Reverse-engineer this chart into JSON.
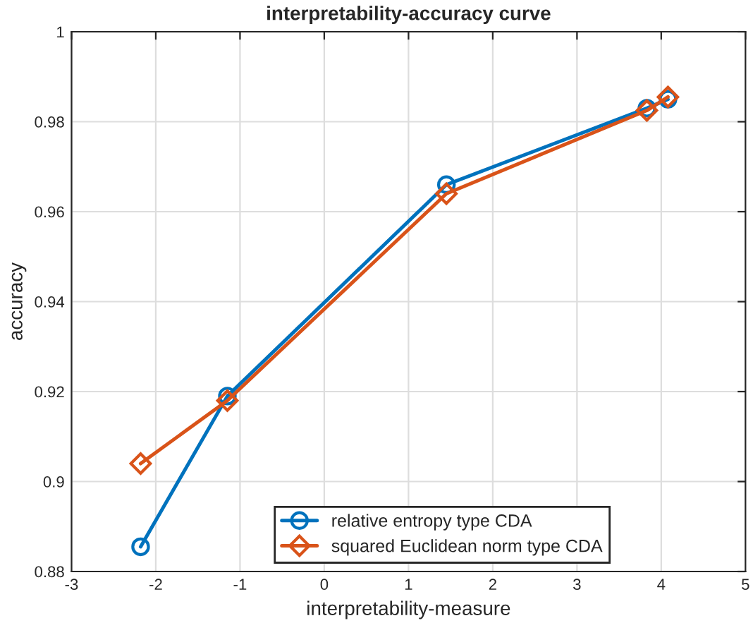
{
  "chart_data": {
    "type": "line",
    "title": "interpretability-accuracy curve",
    "xlabel": "interpretability-measure",
    "ylabel": "accuracy",
    "xlim": [
      -3,
      5
    ],
    "xticks": [
      -3,
      -2,
      -1,
      0,
      1,
      2,
      3,
      4,
      5
    ],
    "ylim": [
      0.88,
      1
    ],
    "yticks": [
      0.88,
      0.9,
      0.92,
      0.94,
      0.96,
      0.98,
      1
    ],
    "grid": true,
    "legend": "bottom",
    "line_style": "solid",
    "series": [
      {
        "name": "relative entropy type CDA",
        "color": "#0072bd",
        "marker": "circle",
        "x": [
          -2.18,
          -1.15,
          1.45,
          3.83,
          4.08
        ],
        "values": [
          0.8855,
          0.919,
          0.966,
          0.983,
          0.985
        ]
      },
      {
        "name": "squared Euclidean norm type CDA",
        "color": "#d95319",
        "marker": "diamond",
        "x": [
          -2.18,
          -1.15,
          1.45,
          3.83,
          4.08
        ],
        "values": [
          0.904,
          0.918,
          0.964,
          0.9825,
          0.9855
        ]
      }
    ]
  }
}
